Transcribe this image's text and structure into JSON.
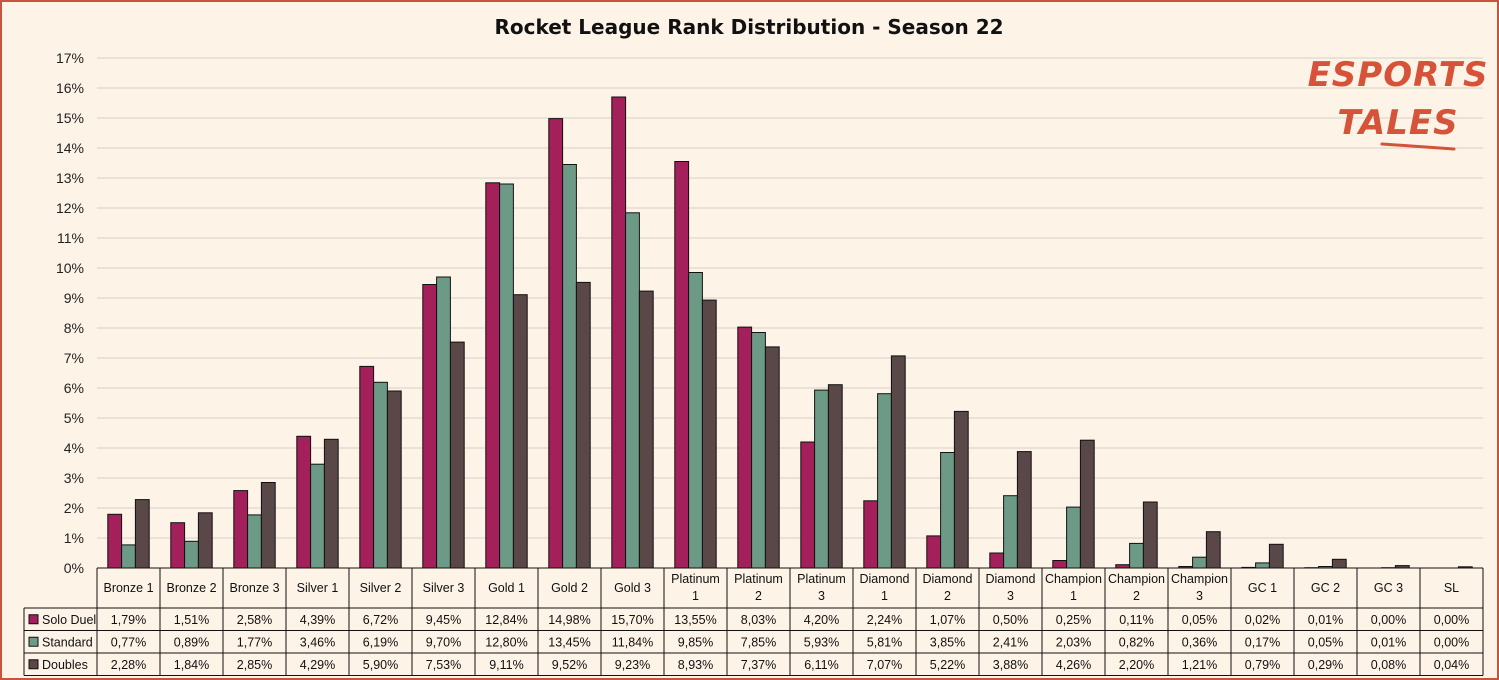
{
  "brand": {
    "line1": "ESPORTS",
    "line2": "TALES",
    "accent": "#d6533a"
  },
  "chart_data": {
    "type": "bar",
    "title": "Rocket League Rank Distribution - Season 22",
    "categories": [
      [
        "Bronze 1"
      ],
      [
        "Bronze 2"
      ],
      [
        "Bronze 3"
      ],
      [
        "Silver 1"
      ],
      [
        "Silver 2"
      ],
      [
        "Silver 3"
      ],
      [
        "Gold 1"
      ],
      [
        "Gold 2"
      ],
      [
        "Gold 3"
      ],
      [
        "Platinum",
        "1"
      ],
      [
        "Platinum",
        "2"
      ],
      [
        "Platinum",
        "3"
      ],
      [
        "Diamond",
        "1"
      ],
      [
        "Diamond",
        "2"
      ],
      [
        "Diamond",
        "3"
      ],
      [
        "Champion",
        "1"
      ],
      [
        "Champion",
        "2"
      ],
      [
        "Champion",
        "3"
      ],
      [
        "GC 1"
      ],
      [
        "GC 2"
      ],
      [
        "GC 3"
      ],
      [
        "SL"
      ]
    ],
    "ylim": [
      0,
      17
    ],
    "yticks": [
      0,
      1,
      2,
      3,
      4,
      5,
      6,
      7,
      8,
      9,
      10,
      11,
      12,
      13,
      14,
      15,
      16,
      17
    ],
    "ytick_suffix": "%",
    "grid": true,
    "legend": "data-table",
    "series": [
      {
        "name": "Solo Duel",
        "color": "#a3205a",
        "values": [
          1.79,
          1.51,
          2.58,
          4.39,
          6.72,
          9.45,
          12.84,
          14.98,
          15.7,
          13.55,
          8.03,
          4.2,
          2.24,
          1.07,
          0.5,
          0.25,
          0.11,
          0.05,
          0.02,
          0.01,
          0.0,
          0.0
        ],
        "labels": [
          "1,79%",
          "1,51%",
          "2,58%",
          "4,39%",
          "6,72%",
          "9,45%",
          "12,84%",
          "14,98%",
          "15,70%",
          "13,55%",
          "8,03%",
          "4,20%",
          "2,24%",
          "1,07%",
          "0,50%",
          "0,25%",
          "0,11%",
          "0,05%",
          "0,02%",
          "0,01%",
          "0,00%",
          "0,00%"
        ]
      },
      {
        "name": "Standard",
        "color": "#6d9a86",
        "values": [
          0.77,
          0.89,
          1.77,
          3.46,
          6.19,
          9.7,
          12.8,
          13.45,
          11.84,
          9.85,
          7.85,
          5.93,
          5.81,
          3.85,
          2.41,
          2.03,
          0.82,
          0.36,
          0.17,
          0.05,
          0.01,
          0.0
        ],
        "labels": [
          "0,77%",
          "0,89%",
          "1,77%",
          "3,46%",
          "6,19%",
          "9,70%",
          "12,80%",
          "13,45%",
          "11,84%",
          "9,85%",
          "7,85%",
          "5,93%",
          "5,81%",
          "3,85%",
          "2,41%",
          "2,03%",
          "0,82%",
          "0,36%",
          "0,17%",
          "0,05%",
          "0,01%",
          "0,00%"
        ]
      },
      {
        "name": "Doubles",
        "color": "#5a4748",
        "values": [
          2.28,
          1.84,
          2.85,
          4.29,
          5.9,
          7.53,
          9.11,
          9.52,
          9.23,
          8.93,
          7.37,
          6.11,
          7.07,
          5.22,
          3.88,
          4.26,
          2.2,
          1.21,
          0.79,
          0.29,
          0.08,
          0.04
        ],
        "labels": [
          "2,28%",
          "1,84%",
          "2,85%",
          "4,29%",
          "5,90%",
          "7,53%",
          "9,11%",
          "9,52%",
          "9,23%",
          "8,93%",
          "7,37%",
          "6,11%",
          "7,07%",
          "5,22%",
          "3,88%",
          "4,26%",
          "2,20%",
          "1,21%",
          "0,79%",
          "0,29%",
          "0,08%",
          "0,04%"
        ]
      }
    ]
  }
}
